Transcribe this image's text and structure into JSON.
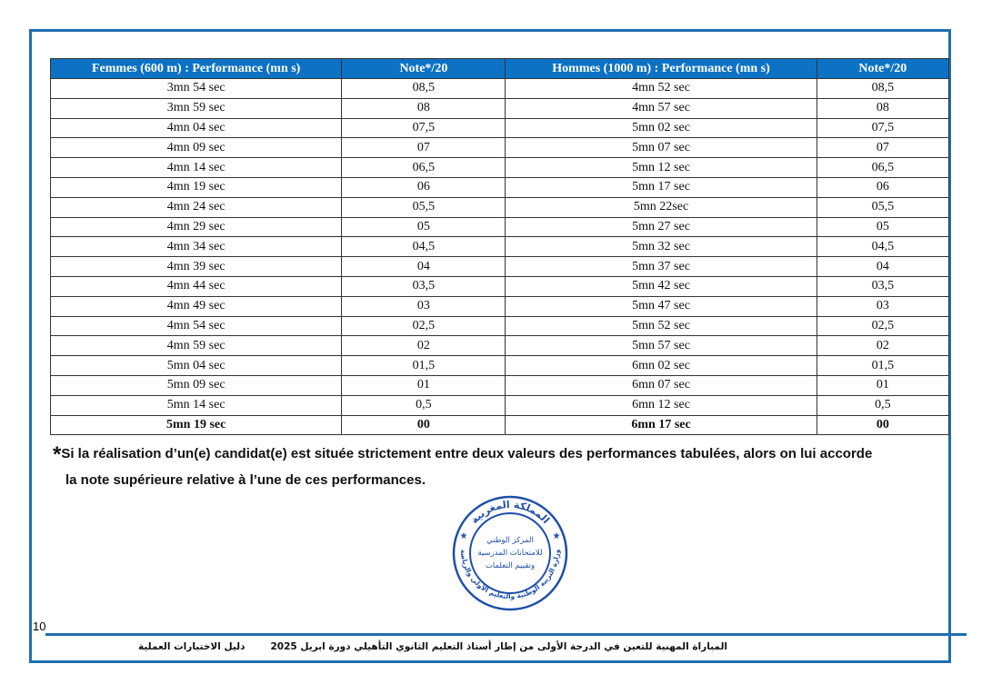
{
  "table": {
    "headers": [
      "Femmes (600 m) : Performance (mn s)",
      "Note*/20",
      "Hommes (1000 m) : Performance (mn s)",
      "Note*/20"
    ],
    "rows": [
      [
        "3mn 54 sec",
        "08,5",
        "4mn 52 sec",
        "08,5"
      ],
      [
        "3mn 59 sec",
        "08",
        "4mn 57 sec",
        "08"
      ],
      [
        "4mn 04 sec",
        "07,5",
        "5mn 02 sec",
        "07,5"
      ],
      [
        "4mn 09 sec",
        "07",
        "5mn 07 sec",
        "07"
      ],
      [
        "4mn 14 sec",
        "06,5",
        "5mn 12 sec",
        "06,5"
      ],
      [
        "4mn 19 sec",
        "06",
        "5mn 17 sec",
        "06"
      ],
      [
        "4mn 24 sec",
        "05,5",
        "5mn 22sec",
        "05,5"
      ],
      [
        "4mn 29 sec",
        "05",
        "5mn 27 sec",
        "05"
      ],
      [
        "4mn 34 sec",
        "04,5",
        "5mn 32 sec",
        "04,5"
      ],
      [
        "4mn 39 sec",
        "04",
        "5mn 37 sec",
        "04"
      ],
      [
        "4mn 44 sec",
        "03,5",
        "5mn 42 sec",
        "03,5"
      ],
      [
        "4mn 49 sec",
        "03",
        "5mn 47 sec",
        "03"
      ],
      [
        "4mn 54 sec",
        "02,5",
        "5mn 52 sec",
        "02,5"
      ],
      [
        "4mn 59 sec",
        "02",
        "5mn 57 sec",
        "02"
      ],
      [
        "5mn 04 sec",
        "01,5",
        "6mn 02 sec",
        "01,5"
      ],
      [
        "5mn 09 sec",
        "01",
        "6mn 07 sec",
        "01"
      ],
      [
        "5mn 14 sec",
        "0,5",
        "6mn 12 sec",
        "0,5"
      ],
      [
        "5mn 19 sec",
        "00",
        "6mn 17 sec",
        "00"
      ]
    ]
  },
  "note": {
    "star": "*",
    "line1": "Si la réalisation d’un(e) candidat(e) est située strictement entre deux valeurs des performances tabulées, alors on lui accorde",
    "line2": "la note supérieure relative à l’une de ces performances."
  },
  "stamp": {
    "outer_top": "المملكة المغربية",
    "outer_bottom": "وزارة التربية الوطنية والتعليم الأولي والرياضة",
    "inner": [
      "المركز الوطني",
      "للامتحانات المدرسية",
      "وتقييم التعلمات"
    ],
    "color": "#1f4fa8"
  },
  "page_number": "10",
  "footer": {
    "title": "المباراة المهنية للتعين في الدرجة الأولى من إطار أستاذ التعليم الثانوي التأهيلي دورة ابريل 2025",
    "subtitle": "دليل الاختبارات العملية"
  },
  "colors": {
    "header_bg": "#0d72c4",
    "frame": "#1f6fb0"
  }
}
